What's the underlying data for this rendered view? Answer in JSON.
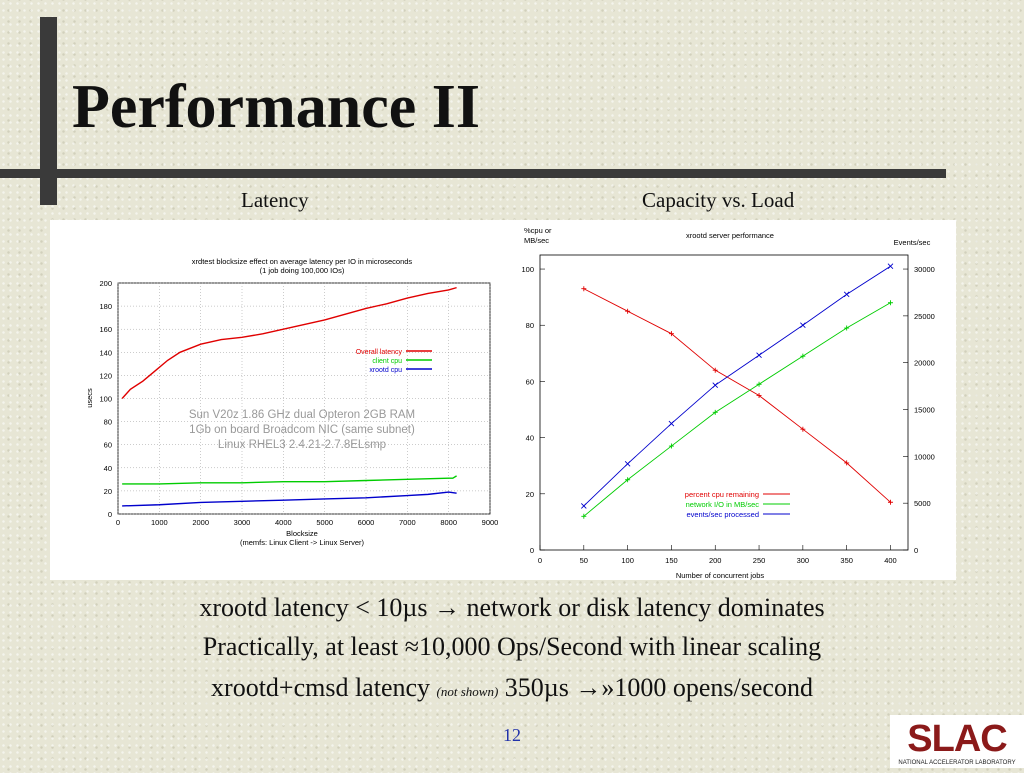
{
  "slide": {
    "title": "Performance II",
    "left_caption": "Latency",
    "right_caption": "Capacity vs. Load",
    "bullets": [
      {
        "pre": "xrootd latency < 10µs → network or disk latency dominates",
        "note": "",
        "post": ""
      },
      {
        "pre": "Practically, at least ≈10,000 Ops/Second with linear scaling",
        "note": "",
        "post": ""
      },
      {
        "pre": "xrootd+cmsd latency ",
        "note": "(not shown)",
        "post": " 350µs →»1000 opens/second"
      }
    ],
    "page_number": "12",
    "logo": {
      "text": "SLAC",
      "tagline": "NATIONAL ACCELERATOR LABORATORY",
      "color": "#8b1a1a"
    }
  },
  "chart_data": [
    {
      "type": "line",
      "title": "xrdtest blocksize effect on average latency per IO in microseconds",
      "subtitle": "(1 job doing 100,000 IOs)",
      "xlabel": "Blocksize",
      "xlabel2": "(memfs: Linux Client -> Linux Server)",
      "ylabel": "usecs",
      "xlim": [
        0,
        9000
      ],
      "ylim": [
        0,
        200
      ],
      "xticks": [
        "0",
        "1000",
        "2000",
        "3000",
        "4000",
        "5000",
        "6000",
        "7000",
        "8000",
        "9000"
      ],
      "yticks": [
        "0",
        "20",
        "40",
        "60",
        "80",
        "100",
        "120",
        "140",
        "160",
        "180",
        "200"
      ],
      "grid": true,
      "legend_position": "middle-right",
      "annotation": [
        "Sun V20z 1.86 GHz dual Opteron 2GB RAM",
        "1Gb on board Broadcom NIC (same subnet)",
        "Linux RHEL3 2.4.21-2.7.8ELsmp"
      ],
      "series": [
        {
          "name": "Overall latency",
          "color": "#e00000",
          "x": [
            100,
            300,
            600,
            900,
            1200,
            1500,
            2000,
            2500,
            3000,
            3500,
            4000,
            4500,
            5000,
            5500,
            6000,
            6500,
            7000,
            7500,
            8000,
            8192
          ],
          "y": [
            100,
            108,
            115,
            124,
            133,
            140,
            147,
            151,
            153,
            156,
            160,
            164,
            168,
            173,
            178,
            182,
            187,
            191,
            194,
            196
          ]
        },
        {
          "name": "client cpu",
          "color": "#00cc00",
          "x": [
            100,
            1000,
            2000,
            3000,
            4000,
            5000,
            6000,
            7000,
            8000,
            8100,
            8192
          ],
          "y": [
            26,
            26,
            27,
            27,
            28,
            28,
            29,
            30,
            31,
            31,
            33
          ]
        },
        {
          "name": "xrootd cpu",
          "color": "#0000cc",
          "x": [
            100,
            1000,
            2000,
            3000,
            4000,
            5000,
            6000,
            7000,
            7500,
            8000,
            8192
          ],
          "y": [
            7,
            8,
            10,
            11,
            12,
            13,
            14,
            16,
            17,
            19,
            18
          ]
        }
      ]
    },
    {
      "type": "line",
      "title": "xrootd server performance",
      "xlabel": "Number of concurrent jobs",
      "ylabel_left": "%cpu or MB/sec",
      "ylabel_right": "Events/sec",
      "xlim": [
        0,
        420
      ],
      "ylim_left": [
        0,
        105
      ],
      "ylim_right": [
        0,
        31500
      ],
      "xticks": [
        "0",
        "50",
        "100",
        "150",
        "200",
        "250",
        "300",
        "350",
        "400"
      ],
      "yticks_left": [
        "0",
        "20",
        "40",
        "60",
        "80",
        "100"
      ],
      "yticks_right": [
        "0",
        "5000",
        "10000",
        "15000",
        "20000",
        "25000",
        "30000"
      ],
      "grid": false,
      "legend_position": "bottom-right",
      "x": [
        50,
        100,
        150,
        200,
        250,
        300,
        350,
        400
      ],
      "series": [
        {
          "name": "percent cpu remaining",
          "color": "#e00000",
          "axis": "left",
          "y": [
            93,
            85,
            77,
            64,
            55,
            43,
            31,
            17
          ]
        },
        {
          "name": "network I/O in MB/sec",
          "color": "#00cc00",
          "axis": "left",
          "y": [
            12,
            25,
            37,
            49,
            59,
            69,
            79,
            88
          ]
        },
        {
          "name": "events/sec processed",
          "color": "#0000cc",
          "axis": "right",
          "y": [
            4700,
            9200,
            13500,
            17600,
            20800,
            24000,
            27300,
            30300
          ]
        }
      ]
    }
  ]
}
